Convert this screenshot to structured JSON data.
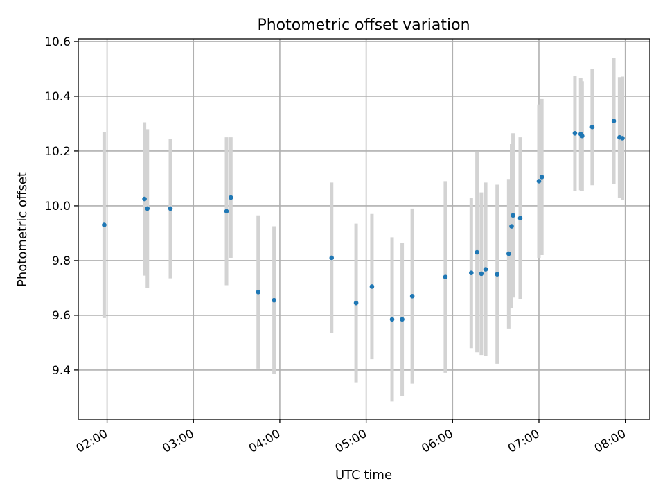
{
  "chart_data": {
    "type": "scatter",
    "title": "Photometric offset variation",
    "xlabel": "UTC time",
    "ylabel": "Photometric offset",
    "xlim": [
      "01:40",
      "08:17"
    ],
    "ylim": [
      9.22,
      10.61
    ],
    "x_ticks": [
      "02:00",
      "03:00",
      "04:00",
      "05:00",
      "06:00",
      "07:00",
      "08:00"
    ],
    "y_ticks": [
      9.4,
      9.6,
      9.8,
      10.0,
      10.2,
      10.4,
      10.6
    ],
    "y_tick_labels": [
      "9.4",
      "9.6",
      "9.8",
      "10.0",
      "10.2",
      "10.4",
      "10.6"
    ],
    "grid": true,
    "series": [
      {
        "marker_color": "#1f77b4",
        "error_bar_color": "#d3d3d3",
        "points": [
          {
            "x": "01:58",
            "y": 9.93,
            "err": 0.34
          },
          {
            "x": "02:26",
            "y": 10.025,
            "err": 0.28
          },
          {
            "x": "02:28",
            "y": 9.99,
            "err": 0.29
          },
          {
            "x": "02:44",
            "y": 9.99,
            "err": 0.255
          },
          {
            "x": "03:23",
            "y": 9.98,
            "err": 0.27
          },
          {
            "x": "03:26",
            "y": 10.03,
            "err": 0.22
          },
          {
            "x": "03:45",
            "y": 9.685,
            "err": 0.28
          },
          {
            "x": "03:56",
            "y": 9.655,
            "err": 0.27
          },
          {
            "x": "04:36",
            "y": 9.81,
            "err": 0.275
          },
          {
            "x": "04:53",
            "y": 9.645,
            "err": 0.29
          },
          {
            "x": "05:04",
            "y": 9.705,
            "err": 0.265
          },
          {
            "x": "05:18",
            "y": 9.585,
            "err": 0.3
          },
          {
            "x": "05:25",
            "y": 9.585,
            "err": 0.28
          },
          {
            "x": "05:32",
            "y": 9.67,
            "err": 0.32
          },
          {
            "x": "05:55",
            "y": 9.74,
            "err": 0.35
          },
          {
            "x": "06:13",
            "y": 9.755,
            "err": 0.275
          },
          {
            "x": "06:17",
            "y": 9.83,
            "err": 0.365
          },
          {
            "x": "06:20",
            "y": 9.752,
            "err": 0.297
          },
          {
            "x": "06:23",
            "y": 9.768,
            "err": 0.317
          },
          {
            "x": "06:31",
            "y": 9.75,
            "err": 0.327
          },
          {
            "x": "06:39",
            "y": 9.825,
            "err": 0.273
          },
          {
            "x": "06:41",
            "y": 9.925,
            "err": 0.3
          },
          {
            "x": "06:42",
            "y": 9.965,
            "err": 0.3
          },
          {
            "x": "06:47",
            "y": 9.955,
            "err": 0.295
          },
          {
            "x": "07:00",
            "y": 10.09,
            "err": 0.28
          },
          {
            "x": "07:02",
            "y": 10.105,
            "err": 0.285
          },
          {
            "x": "07:25",
            "y": 10.265,
            "err": 0.21
          },
          {
            "x": "07:29",
            "y": 10.262,
            "err": 0.205
          },
          {
            "x": "07:30",
            "y": 10.255,
            "err": 0.2
          },
          {
            "x": "07:37",
            "y": 10.288,
            "err": 0.213
          },
          {
            "x": "07:52",
            "y": 10.31,
            "err": 0.23
          },
          {
            "x": "07:56",
            "y": 10.25,
            "err": 0.22
          },
          {
            "x": "07:58",
            "y": 10.247,
            "err": 0.225
          }
        ]
      }
    ]
  }
}
